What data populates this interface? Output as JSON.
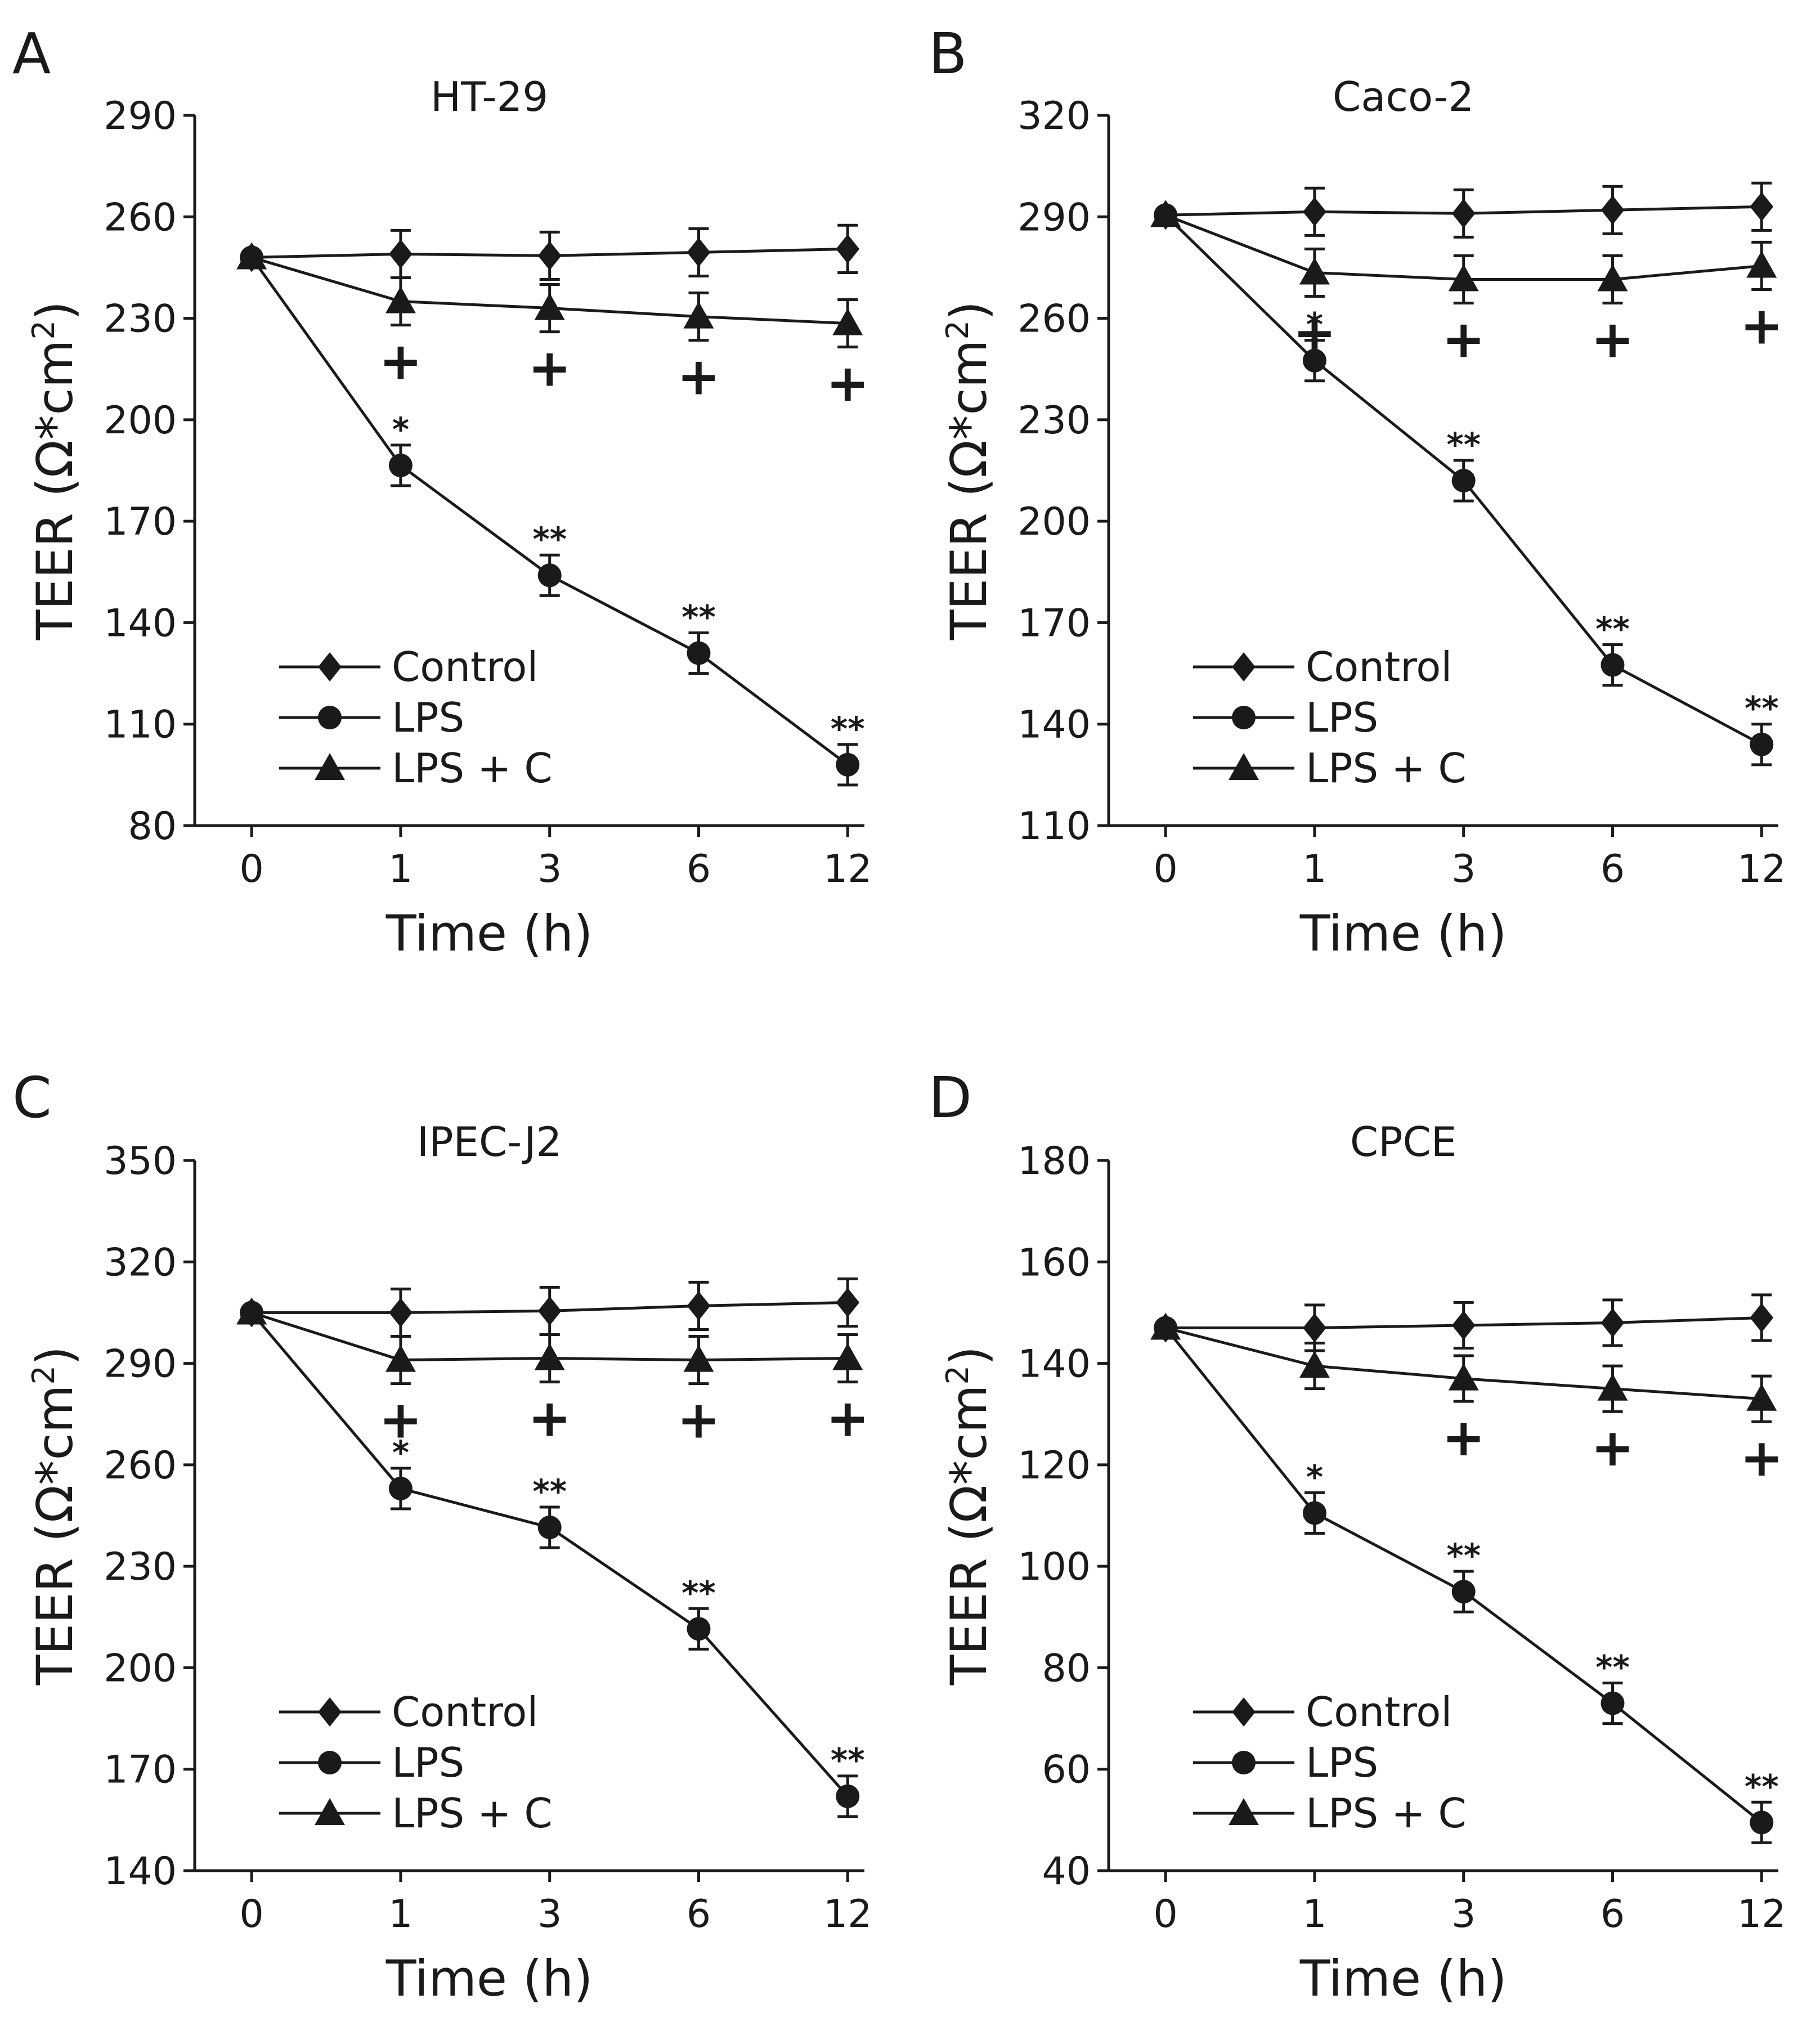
{
  "chart_data": [
    {
      "type": "line",
      "panel_letter": "A",
      "title": "HT-29",
      "xlabel": "Time (h)",
      "ylabel_main": "TEER (Ω*cm",
      "ylabel_sup": "2",
      "ylabel_close": ")",
      "categories": [
        "0",
        "1",
        "3",
        "6",
        "12"
      ],
      "yticks": [
        80,
        110,
        140,
        170,
        200,
        230,
        260,
        290
      ],
      "ylim": [
        80,
        290
      ],
      "legend": "bottom-left",
      "series": [
        {
          "name": "Control",
          "marker": "diamond",
          "values": [
            248,
            249,
            248.5,
            249.5,
            250.5
          ],
          "errors": [
            0,
            7,
            7,
            7,
            7
          ]
        },
        {
          "name": "LPS",
          "marker": "circle",
          "values": [
            248,
            186.5,
            154,
            131,
            98
          ],
          "errors": [
            0,
            6,
            6,
            6,
            6
          ]
        },
        {
          "name": "LPS + C",
          "marker": "triangle",
          "values": [
            248,
            235,
            233,
            230.5,
            228.5
          ],
          "errors": [
            0,
            7,
            7,
            7,
            7
          ]
        }
      ],
      "annotations": [
        {
          "series": "LPS",
          "index": 1,
          "text": "*"
        },
        {
          "series": "LPS",
          "index": 2,
          "text": "**"
        },
        {
          "series": "LPS",
          "index": 3,
          "text": "**"
        },
        {
          "series": "LPS",
          "index": 4,
          "text": "**"
        },
        {
          "series": "LPS + C",
          "index": 1,
          "text": "+"
        },
        {
          "series": "LPS + C",
          "index": 2,
          "text": "+"
        },
        {
          "series": "LPS + C",
          "index": 3,
          "text": "+"
        },
        {
          "series": "LPS + C",
          "index": 4,
          "text": "+"
        }
      ]
    },
    {
      "type": "line",
      "panel_letter": "B",
      "title": "Caco-2",
      "xlabel": "Time (h)",
      "ylabel_main": "TEER (Ω*cm",
      "ylabel_sup": "2",
      "ylabel_close": ")",
      "categories": [
        "0",
        "1",
        "3",
        "6",
        "12"
      ],
      "yticks": [
        110,
        140,
        170,
        200,
        230,
        260,
        290,
        320
      ],
      "ylim": [
        110,
        320
      ],
      "legend": "bottom-left",
      "series": [
        {
          "name": "Control",
          "marker": "diamond",
          "values": [
            290.5,
            291.5,
            291,
            292,
            293
          ],
          "errors": [
            0,
            7,
            7,
            7,
            7
          ]
        },
        {
          "name": "LPS",
          "marker": "circle",
          "values": [
            290.5,
            247.5,
            212,
            157.5,
            134
          ],
          "errors": [
            0,
            6,
            6,
            6,
            6
          ]
        },
        {
          "name": "LPS + C",
          "marker": "triangle",
          "values": [
            290.5,
            273.5,
            271.5,
            271.5,
            275.5
          ],
          "errors": [
            0,
            7,
            7,
            7,
            7
          ]
        }
      ],
      "annotations": [
        {
          "series": "LPS",
          "index": 1,
          "text": "*"
        },
        {
          "series": "LPS",
          "index": 2,
          "text": "**"
        },
        {
          "series": "LPS",
          "index": 3,
          "text": "**"
        },
        {
          "series": "LPS",
          "index": 4,
          "text": "**"
        },
        {
          "series": "LPS + C",
          "index": 1,
          "text": "+"
        },
        {
          "series": "LPS + C",
          "index": 2,
          "text": "+"
        },
        {
          "series": "LPS + C",
          "index": 3,
          "text": "+"
        },
        {
          "series": "LPS + C",
          "index": 4,
          "text": "+"
        }
      ]
    },
    {
      "type": "line",
      "panel_letter": "C",
      "title": "IPEC-J2",
      "xlabel": "Time (h)",
      "ylabel_main": "TEER (Ω*cm",
      "ylabel_sup": "2",
      "ylabel_close": ")",
      "categories": [
        "0",
        "1",
        "3",
        "6",
        "12"
      ],
      "yticks": [
        140,
        170,
        200,
        230,
        260,
        290,
        320,
        350
      ],
      "ylim": [
        140,
        350
      ],
      "legend": "bottom-left",
      "series": [
        {
          "name": "Control",
          "marker": "diamond",
          "values": [
            305,
            305,
            305.5,
            307,
            308
          ],
          "errors": [
            0,
            7,
            7,
            7,
            7
          ]
        },
        {
          "name": "LPS",
          "marker": "circle",
          "values": [
            305,
            253,
            241.5,
            211.5,
            162
          ],
          "errors": [
            0,
            6,
            6,
            6,
            6
          ]
        },
        {
          "name": "LPS + C",
          "marker": "triangle",
          "values": [
            305,
            291,
            291.5,
            291,
            291.5
          ],
          "errors": [
            0,
            7,
            7,
            7,
            7
          ]
        }
      ],
      "annotations": [
        {
          "series": "LPS",
          "index": 1,
          "text": "*"
        },
        {
          "series": "LPS",
          "index": 2,
          "text": "**"
        },
        {
          "series": "LPS",
          "index": 3,
          "text": "**"
        },
        {
          "series": "LPS",
          "index": 4,
          "text": "**"
        },
        {
          "series": "LPS + C",
          "index": 1,
          "text": "+"
        },
        {
          "series": "LPS + C",
          "index": 2,
          "text": "+"
        },
        {
          "series": "LPS + C",
          "index": 3,
          "text": "+"
        },
        {
          "series": "LPS + C",
          "index": 4,
          "text": "+"
        }
      ]
    },
    {
      "type": "line",
      "panel_letter": "D",
      "title": "CPCE",
      "xlabel": "Time (h)",
      "ylabel_main": "TEER (Ω*cm",
      "ylabel_sup": "2",
      "ylabel_close": ")",
      "categories": [
        "0",
        "1",
        "3",
        "6",
        "12"
      ],
      "yticks": [
        40,
        60,
        80,
        100,
        120,
        140,
        160,
        180
      ],
      "ylim": [
        40,
        180
      ],
      "legend": "bottom-left",
      "series": [
        {
          "name": "Control",
          "marker": "diamond",
          "values": [
            147,
            147,
            147.5,
            148,
            149
          ],
          "errors": [
            0,
            4.5,
            4.5,
            4.5,
            4.5
          ]
        },
        {
          "name": "LPS",
          "marker": "circle",
          "values": [
            147,
            110.5,
            95,
            73,
            49.5
          ],
          "errors": [
            0,
            4,
            4,
            4,
            4
          ]
        },
        {
          "name": "LPS + C",
          "marker": "triangle",
          "values": [
            147,
            139.5,
            137,
            135,
            133
          ],
          "errors": [
            0,
            4.5,
            4.5,
            4.5,
            4.5
          ]
        }
      ],
      "annotations": [
        {
          "series": "LPS",
          "index": 1,
          "text": "*"
        },
        {
          "series": "LPS",
          "index": 2,
          "text": "**"
        },
        {
          "series": "LPS",
          "index": 3,
          "text": "**"
        },
        {
          "series": "LPS",
          "index": 4,
          "text": "**"
        },
        {
          "series": "LPS + C",
          "index": 2,
          "text": "+"
        },
        {
          "series": "LPS + C",
          "index": 3,
          "text": "+"
        },
        {
          "series": "LPS + C",
          "index": 4,
          "text": "+"
        }
      ]
    }
  ]
}
